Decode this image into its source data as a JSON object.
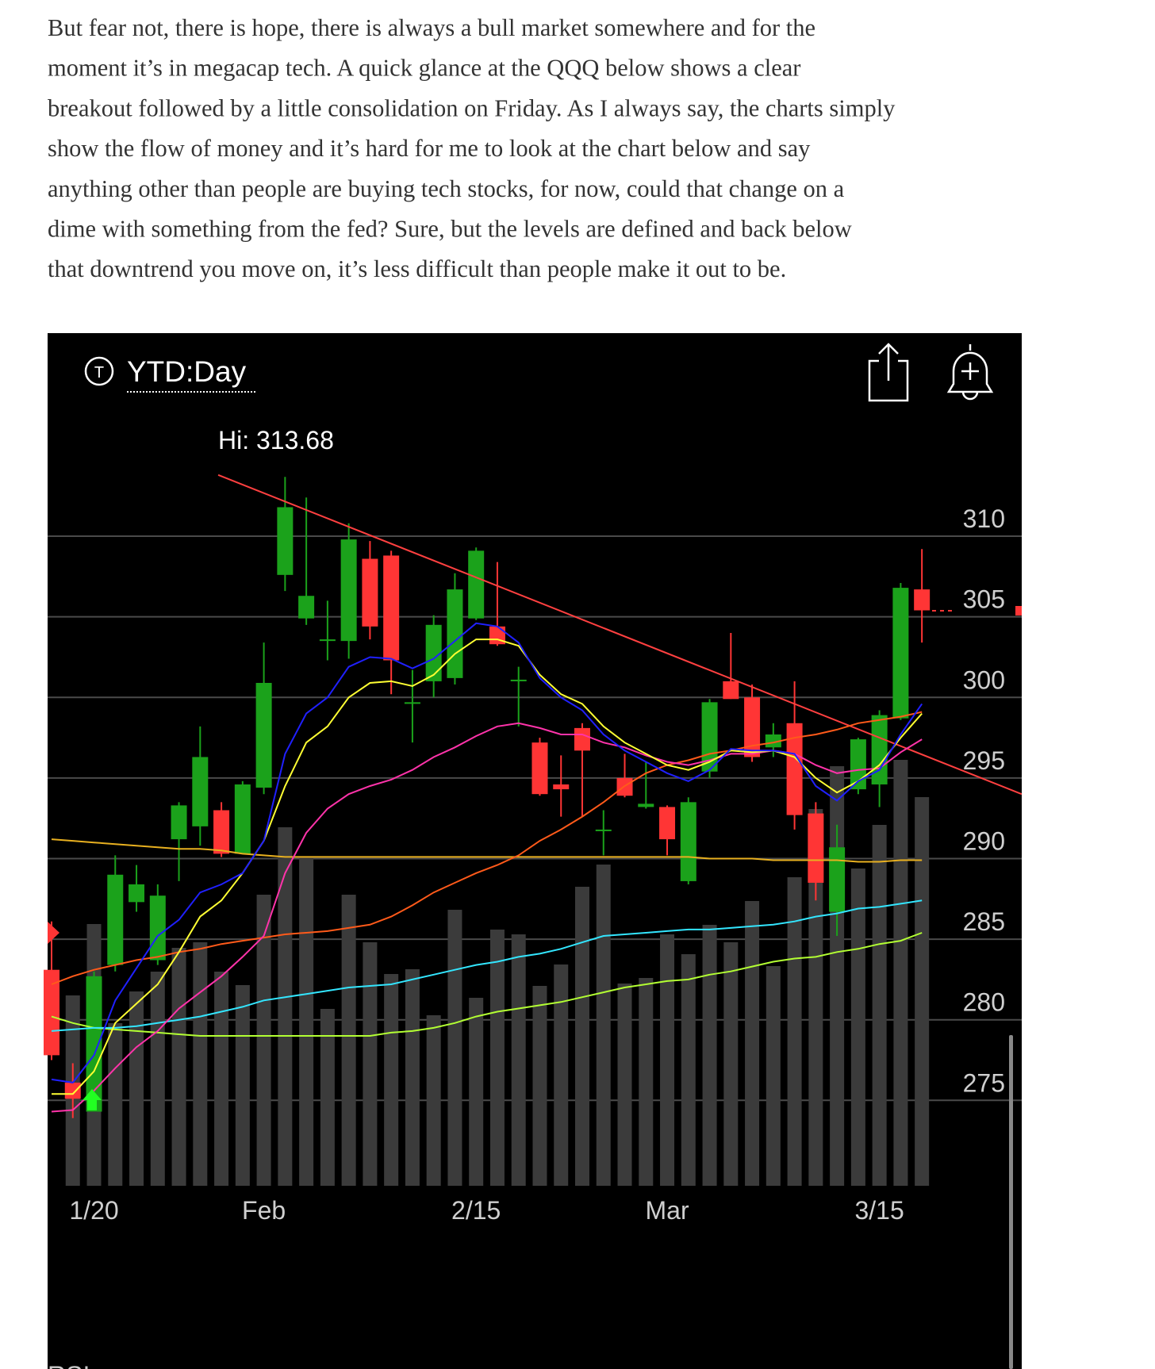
{
  "article": {
    "lines": [
      "But fear not, there is hope, there is always a bull market somewhere and for the",
      "moment it’s in megacap tech. A quick glance at the QQQ below shows a clear",
      "breakout followed by a little consolidation on Friday. As I always say, the charts simply",
      "show the flow of money and it’s hard for me to look at the chart below and say",
      "anything other than people are buying tech stocks, for now, could that change on a",
      "dime with something from the fed? Sure, but the levels are defined and back below",
      "that downtrend you move on, it’s less difficult than people make it out to be."
    ]
  },
  "chart_data": {
    "type": "candlestick",
    "period": "YTD:Day",
    "annotation": "Hi: 313.68",
    "footer_label": "RSI",
    "categories": [
      null,
      null,
      "1/20",
      null,
      null,
      null,
      null,
      null,
      null,
      null,
      "Feb",
      null,
      null,
      null,
      null,
      null,
      null,
      null,
      null,
      null,
      "2/15",
      null,
      null,
      null,
      null,
      null,
      null,
      null,
      null,
      "Mar",
      null,
      null,
      null,
      null,
      null,
      null,
      null,
      null,
      null,
      "3/15",
      null,
      null
    ],
    "open": [
      283.1,
      276.1,
      274.3,
      283.4,
      287.3,
      283.7,
      291.2,
      292.0,
      293.0,
      290.3,
      294.4,
      307.6,
      304.9,
      303.5,
      303.5,
      308.6,
      308.8,
      299.6,
      301.0,
      301.2,
      304.9,
      304.4,
      301.0,
      297.2,
      294.6,
      298.1,
      291.7,
      295.0,
      293.2,
      293.2,
      288.6,
      295.4,
      301.0,
      300.0,
      296.9,
      298.4,
      292.8,
      286.7,
      294.3,
      294.6,
      298.7,
      306.7
    ],
    "high": [
      286.1,
      277.3,
      283.0,
      290.2,
      289.6,
      288.4,
      293.5,
      298.2,
      293.5,
      294.8,
      303.4,
      313.68,
      312.4,
      306.0,
      310.8,
      309.7,
      309.1,
      301.7,
      305.1,
      307.7,
      309.3,
      308.4,
      301.9,
      297.5,
      296.4,
      298.4,
      293.0,
      296.5,
      296.0,
      293.3,
      293.8,
      299.9,
      304.0,
      300.8,
      298.4,
      301.0,
      293.5,
      292.1,
      297.5,
      299.2,
      307.1,
      309.2
    ],
    "low": [
      277.5,
      273.9,
      274.3,
      283.0,
      286.7,
      283.4,
      288.6,
      290.8,
      290.1,
      290.3,
      294.0,
      306.6,
      304.5,
      302.3,
      302.4,
      303.6,
      300.2,
      297.2,
      300.0,
      300.8,
      304.8,
      303.2,
      298.2,
      293.9,
      292.6,
      292.6,
      290.2,
      293.8,
      293.1,
      290.2,
      288.4,
      295.0,
      299.9,
      296.0,
      296.3,
      291.8,
      287.4,
      285.2,
      294.0,
      293.2,
      298.6,
      303.4
    ],
    "close": [
      277.8,
      275.1,
      282.7,
      289.0,
      288.4,
      287.7,
      293.3,
      296.3,
      290.3,
      294.6,
      300.9,
      311.8,
      306.3,
      303.6,
      309.8,
      304.4,
      302.3,
      299.7,
      304.5,
      306.7,
      309.1,
      303.3,
      301.1,
      294.0,
      294.3,
      296.7,
      291.8,
      293.9,
      293.4,
      291.2,
      293.5,
      299.7,
      299.9,
      296.3,
      297.7,
      292.7,
      288.5,
      290.7,
      297.4,
      298.9,
      306.8,
      305.4
    ],
    "volume": [
      null,
      24.0,
      33.0,
      20.5,
      24.5,
      27.0,
      30.0,
      30.7,
      27.0,
      25.3,
      36.7,
      45.2,
      41.5,
      22.3,
      36.7,
      30.7,
      26.7,
      27.3,
      21.5,
      34.8,
      23.7,
      32.3,
      31.7,
      25.2,
      27.9,
      37.7,
      40.5,
      25.5,
      26.2,
      31.7,
      29.2,
      32.9,
      30.7,
      35.9,
      27.7,
      38.9,
      47.5,
      52.9,
      40.0,
      45.5,
      53.7,
      49.0
    ],
    "up_color": "#1ba21b",
    "down_color": "#ff3535",
    "volume_color": "#3b3b3b",
    "series": [
      {
        "color": "#b3ff33",
        "values": [
          280.2,
          279.8,
          279.5,
          279.4,
          279.3,
          279.2,
          279.1,
          279.0,
          279.0,
          279.0,
          279.0,
          279.0,
          279.0,
          279.0,
          279.0,
          279.0,
          279.2,
          279.3,
          279.5,
          279.8,
          280.2,
          280.5,
          280.7,
          280.9,
          281.1,
          281.4,
          281.7,
          282.0,
          282.2,
          282.4,
          282.5,
          282.8,
          283.0,
          283.3,
          283.6,
          283.8,
          283.9,
          284.2,
          284.4,
          284.7,
          284.9,
          285.4
        ]
      },
      {
        "color": "#33e6ff",
        "values": [
          279.3,
          279.4,
          279.5,
          279.5,
          279.6,
          279.8,
          280.0,
          280.2,
          280.5,
          280.8,
          281.2,
          281.4,
          281.6,
          281.8,
          282.0,
          282.1,
          282.2,
          282.5,
          282.8,
          283.1,
          283.4,
          283.6,
          283.9,
          284.1,
          284.4,
          284.8,
          285.2,
          285.3,
          285.4,
          285.5,
          285.6,
          285.6,
          285.7,
          285.8,
          285.9,
          286.1,
          286.4,
          286.6,
          286.9,
          287.0,
          287.2,
          287.4
        ]
      },
      {
        "color": "#e8b020",
        "values": [
          291.2,
          291.1,
          291.0,
          290.9,
          290.8,
          290.7,
          290.6,
          290.6,
          290.5,
          290.3,
          290.2,
          290.1,
          290.1,
          290.1,
          290.1,
          290.1,
          290.1,
          290.1,
          290.1,
          290.1,
          290.1,
          290.1,
          290.1,
          290.1,
          290.1,
          290.1,
          290.1,
          290.1,
          290.1,
          290.1,
          290.1,
          290.0,
          290.0,
          290.0,
          289.9,
          289.9,
          289.9,
          289.9,
          289.8,
          289.8,
          289.9,
          289.9
        ]
      },
      {
        "color": "#ff5a1a",
        "values": [
          282.2,
          282.7,
          283.1,
          283.4,
          283.7,
          283.9,
          284.2,
          284.4,
          284.7,
          284.9,
          285.1,
          285.3,
          285.4,
          285.5,
          285.7,
          285.9,
          286.4,
          287.1,
          287.9,
          288.5,
          289.1,
          289.6,
          290.2,
          291.1,
          291.8,
          292.6,
          293.5,
          294.5,
          295.3,
          295.8,
          296.1,
          296.5,
          296.7,
          297.0,
          297.2,
          297.5,
          297.7,
          298.0,
          298.4,
          298.6,
          298.8,
          299.1
        ]
      },
      {
        "color": "#ff33aa",
        "values": [
          274.3,
          274.4,
          275.6,
          277.0,
          278.3,
          279.3,
          280.7,
          281.7,
          282.7,
          283.9,
          285.2,
          289.1,
          291.6,
          293.1,
          294.0,
          294.5,
          294.9,
          295.5,
          296.3,
          296.9,
          297.6,
          298.2,
          298.4,
          298.1,
          297.7,
          297.7,
          297.2,
          296.9,
          296.4,
          296.0,
          295.8,
          296.1,
          296.5,
          296.5,
          296.7,
          296.5,
          295.8,
          295.3,
          295.5,
          295.6,
          296.6,
          297.4
        ]
      },
      {
        "color": "#ffff33",
        "values": [
          275.4,
          275.4,
          276.8,
          279.8,
          281.0,
          282.2,
          284.2,
          286.4,
          287.4,
          289.1,
          291.1,
          294.5,
          297.2,
          298.2,
          300.0,
          300.9,
          301.0,
          300.7,
          301.4,
          302.7,
          303.6,
          303.6,
          303.2,
          301.4,
          300.2,
          299.6,
          298.2,
          297.2,
          296.5,
          295.8,
          295.5,
          296.0,
          296.7,
          296.6,
          296.7,
          296.3,
          295.0,
          294.1,
          294.8,
          295.8,
          297.5,
          299.0
        ]
      },
      {
        "color": "#2020ff",
        "values": [
          276.3,
          276.1,
          277.8,
          281.2,
          283.2,
          285.2,
          286.2,
          287.9,
          288.4,
          289.1,
          291.1,
          296.5,
          299.0,
          300.0,
          301.9,
          302.5,
          302.4,
          301.8,
          302.4,
          303.5,
          304.6,
          304.4,
          303.4,
          301.2,
          300.0,
          299.2,
          297.7,
          296.7,
          296.0,
          295.3,
          294.8,
          295.5,
          296.8,
          296.7,
          296.7,
          296.5,
          294.5,
          293.6,
          294.8,
          295.5,
          297.7,
          299.6
        ]
      }
    ],
    "trendline": {
      "color": "#ff4040",
      "x": [
        7.85,
        45.7
      ],
      "y": [
        313.8,
        294.0
      ]
    },
    "ylim": [
      269.7,
      322.6
    ],
    "yticks": [
      275,
      280,
      285,
      290,
      295,
      300,
      305,
      310
    ],
    "grid": true
  }
}
